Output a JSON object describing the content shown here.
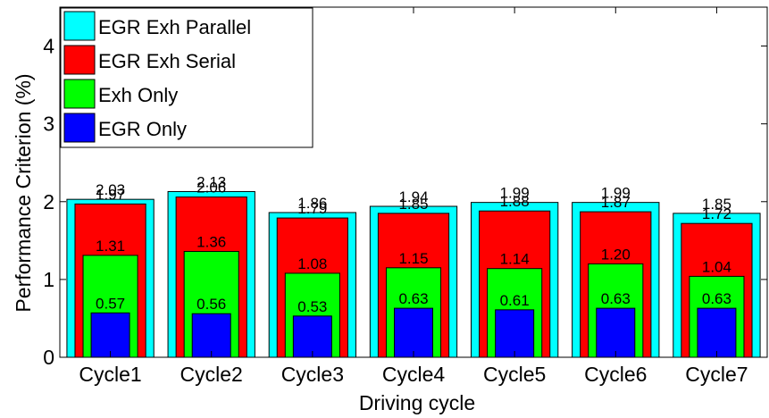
{
  "chart_data": {
    "type": "bar",
    "title": "",
    "xlabel": "Driving cycle",
    "ylabel": "Performance Criterion (%)",
    "ylim": [
      0,
      4.5
    ],
    "yticks": [
      "0",
      "1",
      "2",
      "3",
      "4"
    ],
    "grid": false,
    "legend_position": "top-left",
    "categories": [
      "Cycle1",
      "Cycle2",
      "Cycle3",
      "Cycle4",
      "Cycle5",
      "Cycle6",
      "Cycle7"
    ],
    "series": [
      {
        "name": "EGR Exh Parallel",
        "color": "#00ffff",
        "values": [
          2.03,
          2.13,
          1.86,
          1.94,
          1.99,
          1.99,
          1.85
        ],
        "labels": [
          "2.03",
          "2.13",
          "1.86",
          "1.94",
          "1.99",
          "1.99",
          "1.85"
        ]
      },
      {
        "name": "EGR Exh Serial",
        "color": "#ff0000",
        "values": [
          1.97,
          2.06,
          1.79,
          1.85,
          1.88,
          1.87,
          1.72
        ],
        "labels": [
          "1.97",
          "2.06",
          "1.79",
          "1.85",
          "1.88",
          "1.87",
          "1.72"
        ]
      },
      {
        "name": "Exh Only",
        "color": "#00ff00",
        "values": [
          1.31,
          1.36,
          1.08,
          1.15,
          1.14,
          1.2,
          1.04
        ],
        "labels": [
          "1.31",
          "1.36",
          "1.08",
          "1.15",
          "1.14",
          "1.20",
          "1.04"
        ]
      },
      {
        "name": "EGR Only",
        "color": "#0000ff",
        "values": [
          0.57,
          0.56,
          0.53,
          0.63,
          0.61,
          0.63,
          0.63
        ],
        "labels": [
          "0.57",
          "0.56",
          "0.53",
          "0.63",
          "0.61",
          "0.63",
          "0.63"
        ]
      }
    ]
  }
}
